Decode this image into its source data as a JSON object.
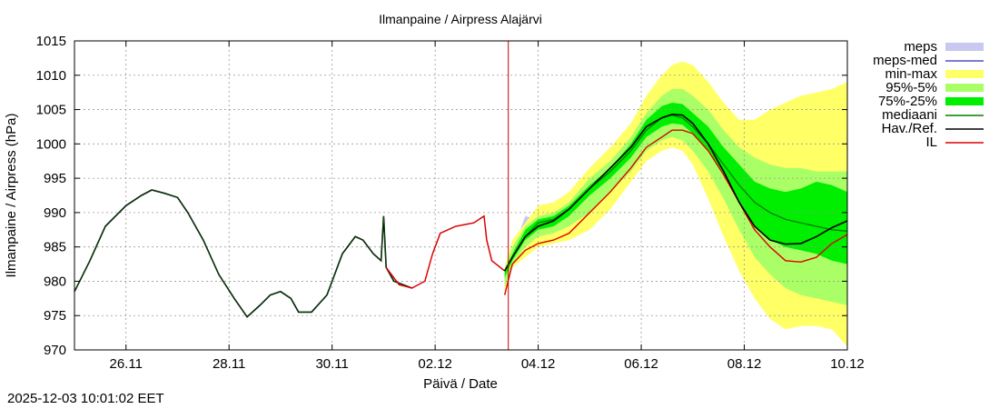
{
  "chart_data": {
    "type": "area",
    "title": "Ilmanpaine / Airpress Alajärvi",
    "xlabel": "Päivä / Date",
    "ylabel": "Ilmanpaine / Airpress (hPa)",
    "xlim": [
      0,
      15
    ],
    "ylim": [
      970,
      1015
    ],
    "x_unit": "days since 25.11 00:00",
    "y_ticks": [
      970,
      975,
      980,
      985,
      990,
      995,
      1000,
      1005,
      1010,
      1015
    ],
    "x_ticks": [
      {
        "x": 1,
        "label": "26.11"
      },
      {
        "x": 3,
        "label": "28.11"
      },
      {
        "x": 5,
        "label": "30.11"
      },
      {
        "x": 7,
        "label": "02.12"
      },
      {
        "x": 9,
        "label": "04.12"
      },
      {
        "x": 11,
        "label": "06.12"
      },
      {
        "x": 13,
        "label": "08.12"
      },
      {
        "x": 15,
        "label": "10.12"
      }
    ],
    "grid": true,
    "now_line_x": 8.42,
    "legend_position": "outside-right",
    "legend": [
      {
        "key": "meps",
        "label": "meps",
        "kind": "band",
        "color": "#c8c8f0"
      },
      {
        "key": "meps-med",
        "label": "meps-med",
        "kind": "line",
        "color": "#5050c0"
      },
      {
        "key": "min-max",
        "label": "min-max",
        "kind": "band",
        "color": "#ffff66"
      },
      {
        "key": "p95-5",
        "label": "95%-5%",
        "kind": "band",
        "color": "#aaff66"
      },
      {
        "key": "p75-25",
        "label": "75%-25%",
        "kind": "band",
        "color": "#00ee00"
      },
      {
        "key": "mediaani",
        "label": "mediaani",
        "kind": "line",
        "color": "#008000"
      },
      {
        "key": "hav",
        "label": "Hav./Ref.",
        "kind": "line",
        "color": "#000000"
      },
      {
        "key": "il",
        "label": "IL",
        "kind": "line",
        "color": "#dd0000"
      }
    ],
    "series": {
      "observed": {
        "name": "Hav./Ref.",
        "x": [
          0,
          0.3,
          0.6,
          1.0,
          1.3,
          1.5,
          1.75,
          2.0,
          2.2,
          2.5,
          2.8,
          3.1,
          3.35,
          3.6,
          3.8,
          4.0,
          4.2,
          4.35,
          4.6,
          4.9,
          5.2,
          5.45,
          5.6,
          5.8,
          5.95,
          6.0,
          6.05,
          6.2,
          6.55
        ],
        "y": [
          978.5,
          983,
          988,
          991,
          992.5,
          993.3,
          992.8,
          992.2,
          990,
          986,
          981,
          977.5,
          974.8,
          976.5,
          978,
          978.5,
          977.5,
          975.5,
          975.5,
          978,
          984,
          986.5,
          986,
          984,
          983,
          989.5,
          982,
          980,
          979
        ]
      },
      "il_obs": {
        "name": "IL",
        "x": [
          6.05,
          6.3,
          6.55,
          6.8,
          6.95,
          7.1,
          7.4,
          7.75,
          7.95,
          8.0,
          8.1,
          8.35
        ],
        "y": [
          982,
          979.5,
          979,
          980,
          984,
          987,
          988,
          988.5,
          989.5,
          986,
          983,
          981.5
        ]
      },
      "mediaani": {
        "name": "mediaani",
        "x": [
          8.35,
          8.5,
          8.75,
          9.0,
          9.3,
          9.6,
          10.0,
          10.4,
          10.8,
          11.1,
          11.4,
          11.6,
          11.8,
          12.0,
          12.3,
          12.6,
          12.9,
          13.2,
          13.5,
          13.8,
          14.1,
          14.4,
          14.7,
          15.0
        ],
        "y": [
          981.5,
          983.5,
          986.5,
          988.5,
          989,
          990.5,
          993.5,
          996,
          999,
          1002,
          1003.8,
          1004.2,
          1003.8,
          1002.5,
          1000,
          997,
          994,
          991.5,
          990,
          989,
          988.5,
          988,
          987.5,
          987.3
        ]
      },
      "hav_forecast": {
        "name": "Hav./Ref.",
        "x": [
          8.35,
          8.5,
          8.75,
          9.0,
          9.3,
          9.6,
          10.0,
          10.4,
          10.8,
          11.1,
          11.4,
          11.6,
          11.8,
          12.0,
          12.3,
          12.6,
          12.9,
          13.2,
          13.5,
          13.8,
          14.1,
          14.4,
          14.7,
          15.0
        ],
        "y": [
          981.5,
          983.5,
          986.5,
          988,
          988.8,
          990.5,
          993.5,
          996.5,
          999.5,
          1002.5,
          1003.8,
          1004.3,
          1004.2,
          1003,
          1000,
          996,
          991.5,
          988,
          986,
          985.4,
          985.5,
          986.5,
          987.8,
          988.8
        ]
      },
      "il_forecast": {
        "name": "IL",
        "x": [
          8.35,
          8.5,
          8.75,
          9.0,
          9.3,
          9.6,
          10.0,
          10.4,
          10.8,
          11.1,
          11.4,
          11.6,
          11.8,
          12.0,
          12.3,
          12.6,
          12.9,
          13.2,
          13.5,
          13.8,
          14.1,
          14.4,
          14.7,
          15.0
        ],
        "y": [
          978,
          982.5,
          984.5,
          985.5,
          986,
          987,
          990,
          993,
          996.5,
          999.5,
          1001,
          1002,
          1002,
          1001.5,
          999,
          995.5,
          991.5,
          987.5,
          985,
          983,
          982.8,
          983.5,
          985.5,
          986.8
        ]
      },
      "minmax": {
        "name": "min-max",
        "x": [
          8.35,
          8.5,
          8.75,
          9.0,
          9.3,
          9.6,
          10.0,
          10.4,
          10.8,
          11.1,
          11.4,
          11.6,
          11.8,
          12.0,
          12.3,
          12.6,
          12.9,
          13.2,
          13.5,
          13.8,
          14.1,
          14.4,
          14.7,
          15.0
        ],
        "upper": [
          982,
          986,
          988.5,
          991,
          991.5,
          993,
          996.5,
          999.5,
          1003,
          1007,
          1010,
          1011.5,
          1012,
          1011.5,
          1009,
          1006,
          1003.5,
          1003.5,
          1005,
          1006,
          1007,
          1007.5,
          1008,
          1009
        ],
        "lower": [
          978,
          982,
          983.5,
          985,
          985.5,
          986,
          987.5,
          990.5,
          994.5,
          997.5,
          999,
          999.5,
          999,
          997,
          992,
          986.5,
          981.5,
          977.5,
          974.5,
          973,
          973.5,
          973.5,
          973,
          970.5
        ]
      },
      "p95_5": {
        "name": "95%-5%",
        "x": [
          8.35,
          8.5,
          8.75,
          9.0,
          9.3,
          9.6,
          10.0,
          10.4,
          10.8,
          11.1,
          11.4,
          11.6,
          11.8,
          12.0,
          12.3,
          12.6,
          12.9,
          13.2,
          13.5,
          13.8,
          14.1,
          14.4,
          14.7,
          15.0
        ],
        "upper": [
          981.8,
          985,
          988,
          989.5,
          990,
          991.5,
          995,
          997.5,
          1001,
          1004.5,
          1007,
          1008,
          1008,
          1007,
          1005,
          1002,
          999.5,
          998,
          997,
          996.5,
          996.5,
          996,
          996,
          996
        ],
        "lower": [
          979,
          982.5,
          985,
          986.5,
          987,
          988,
          990,
          993,
          996,
          999,
          1000.5,
          1001,
          1000.5,
          999,
          996,
          992,
          987.5,
          983.5,
          981,
          979,
          978,
          977.5,
          977,
          976.5
        ]
      },
      "p75_25": {
        "name": "75%-25%",
        "x": [
          8.35,
          8.5,
          8.75,
          9.0,
          9.3,
          9.6,
          10.0,
          10.4,
          10.8,
          11.1,
          11.4,
          11.6,
          11.8,
          12.0,
          12.3,
          12.6,
          12.9,
          13.2,
          13.5,
          13.8,
          14.1,
          14.4,
          14.7,
          15.0
        ],
        "upper": [
          981.5,
          984,
          987.5,
          989,
          989.5,
          991,
          994,
          996.5,
          1000,
          1003.5,
          1005.5,
          1006,
          1005.8,
          1004.5,
          1002.5,
          999.5,
          997,
          994.5,
          993.5,
          993,
          993.5,
          994.5,
          994,
          993
        ],
        "lower": [
          980.5,
          983,
          986,
          987.5,
          988,
          989.5,
          992.5,
          995,
          998,
          1001,
          1002.5,
          1003,
          1002.8,
          1001.5,
          999,
          995.5,
          991.5,
          988,
          986,
          985,
          984.5,
          984,
          983,
          982.5
        ]
      },
      "meps": {
        "name": "meps",
        "x": [
          8.35,
          8.5,
          8.75,
          9.0,
          9.3,
          9.6
        ],
        "upper": [
          982,
          984.5,
          989.5,
          989,
          989.5,
          991
        ],
        "lower": [
          981,
          983,
          985.5,
          987,
          987.5,
          989
        ]
      }
    }
  },
  "footer": {
    "timestamp": "2025-12-03 10:01:02 EET"
  }
}
